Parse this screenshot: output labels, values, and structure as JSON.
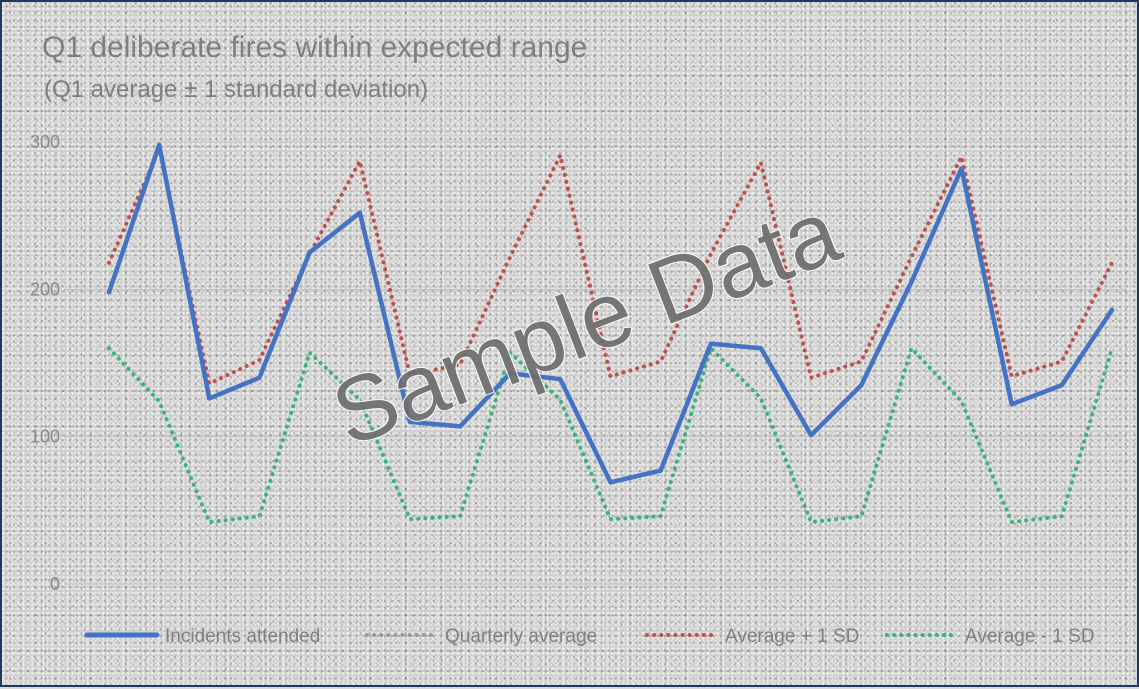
{
  "chart_data": {
    "type": "line",
    "title": "Q1 deliberate fires within expected range",
    "subtitle": "(Q1 average ± 1 standard deviation)",
    "xlabel": "",
    "ylabel": "",
    "ylim": [
      0,
      300
    ],
    "y_ticks": [
      0,
      100,
      200,
      300
    ],
    "grid": true,
    "legend_position": "bottom",
    "series": [
      {
        "name": "Incidents attended",
        "color": "#4472c4",
        "style": "solid",
        "values": [
          198,
          298,
          126,
          140,
          225,
          252,
          110,
          107,
          143,
          139,
          69,
          77,
          163,
          160,
          101,
          135,
          205,
          282,
          122,
          135,
          186
        ]
      },
      {
        "name": "Quarterly average",
        "color": "#9a9a9a",
        "style": "dotted",
        "values": []
      },
      {
        "name": "Average + 1 SD",
        "color": "#c0504d",
        "style": "dotted",
        "values": [
          218,
          295,
          136,
          152,
          224,
          287,
          142,
          149,
          222,
          291,
          141,
          151,
          224,
          286,
          140,
          151,
          222,
          290,
          141,
          151,
          218
        ]
      },
      {
        "name": "Average - 1 SD",
        "color": "#3bb37a",
        "style": "dotted",
        "values": [
          160,
          124,
          42,
          46,
          157,
          125,
          44,
          46,
          157,
          125,
          44,
          46,
          160,
          126,
          42,
          46,
          160,
          124,
          42,
          46,
          160
        ]
      }
    ],
    "watermark": "Sample Data"
  }
}
